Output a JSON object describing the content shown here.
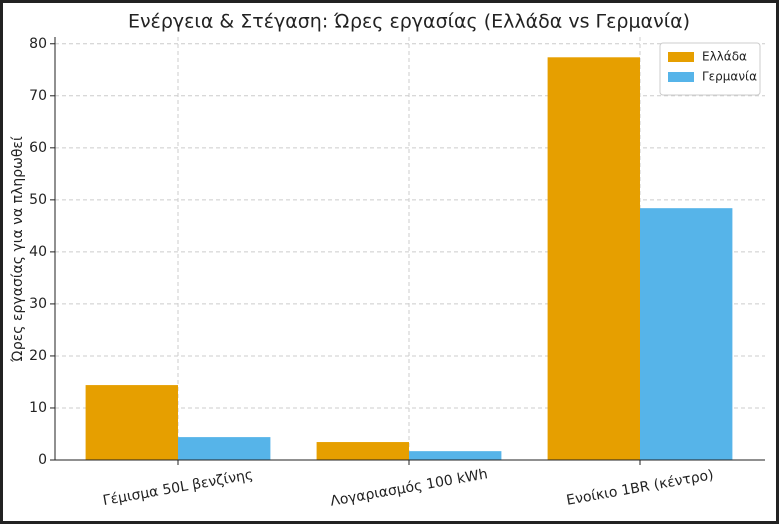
{
  "chart_data": {
    "type": "bar",
    "title": "Ενέργεια & Στέγαση: Ώρες εργασίας (Ελλάδα vs Γερμανία)",
    "y_label": "Ώρες εργασίας για να πληρωθεί",
    "categories": [
      "Γέμισμα 50L βενζίνης",
      "Λογαριασμός 100 kWh",
      "Ενοίκιο 1BR (κέντρο)"
    ],
    "series": [
      {
        "name": "Ελλάδα",
        "color": "#e69f00",
        "values": [
          14.4,
          3.45,
          77.4
        ]
      },
      {
        "name": "Γερμανία",
        "color": "#56b4e9",
        "values": [
          4.4,
          1.7,
          48.4
        ]
      }
    ],
    "ylim": [
      0,
      81.3
    ],
    "yticks": [
      0,
      10,
      20,
      30,
      40,
      50,
      60,
      70,
      80
    ],
    "grid": true,
    "legend": "upper right"
  }
}
